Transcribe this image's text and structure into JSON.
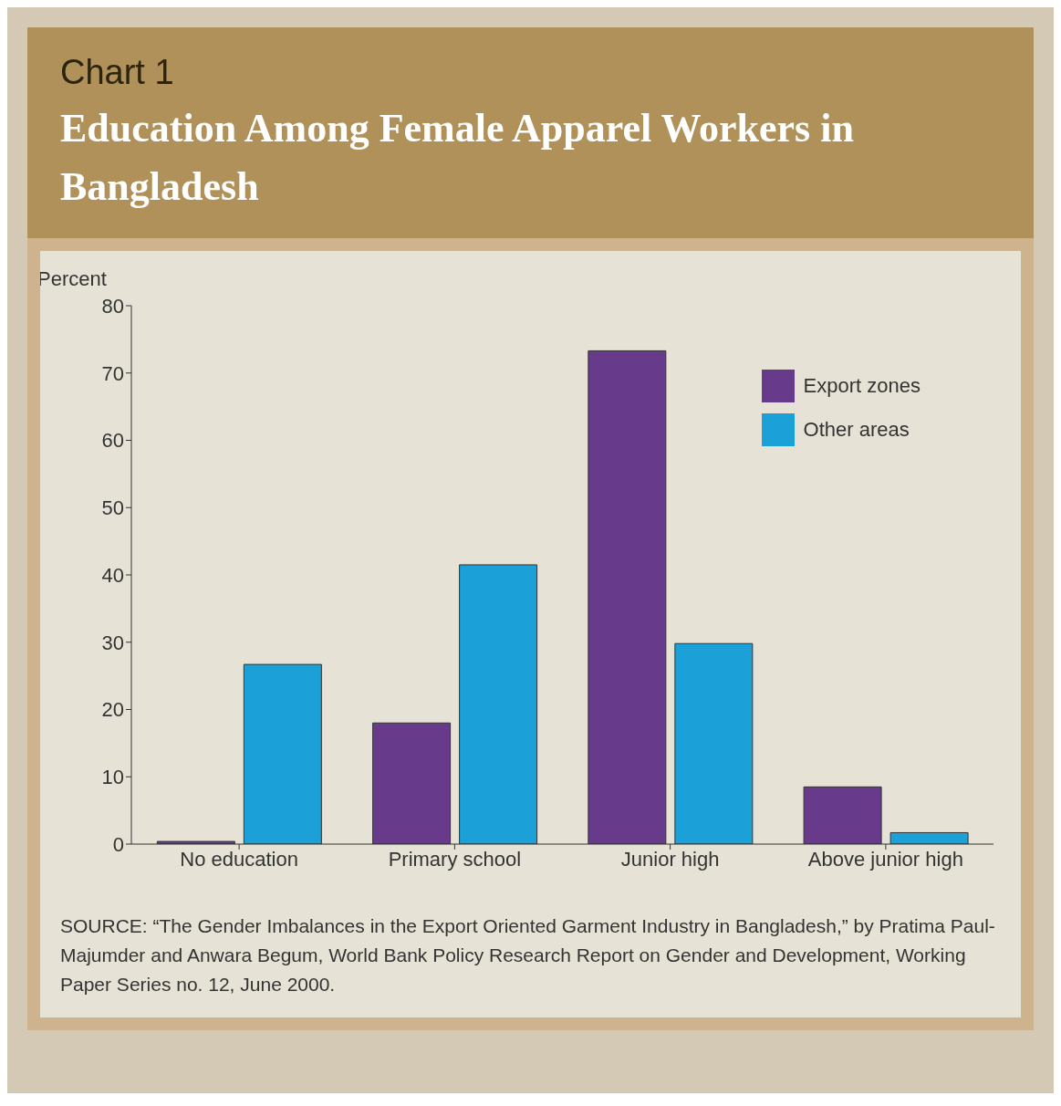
{
  "chart_data": {
    "type": "bar",
    "subtitle": "Chart 1",
    "title": "Education Among Female Apparel Workers in Bangladesh",
    "ylabel": "Percent",
    "categories": [
      "No education",
      "Primary school",
      "Junior high",
      "Above junior high"
    ],
    "series": [
      {
        "name": "Export zones",
        "color": "#673a8c",
        "values": [
          0.4,
          18,
          73.3,
          8.5
        ]
      },
      {
        "name": "Other areas",
        "color": "#1ba1d8",
        "values": [
          26.7,
          41.5,
          29.8,
          1.7
        ]
      }
    ],
    "ylim": [
      0,
      80
    ],
    "yticks": [
      0,
      10,
      20,
      30,
      40,
      50,
      60,
      70,
      80
    ],
    "grid": false,
    "legend": "top right",
    "annotations": [
      "SOURCE: “The Gender Imbalances in the Export Oriented Garment Industry in Bangladesh,” by Pratima Paul-Majumder and Anwara Begum, World Bank Policy Research Report on Gender and Development, Working Paper Series no. 12, June 2000."
    ]
  }
}
